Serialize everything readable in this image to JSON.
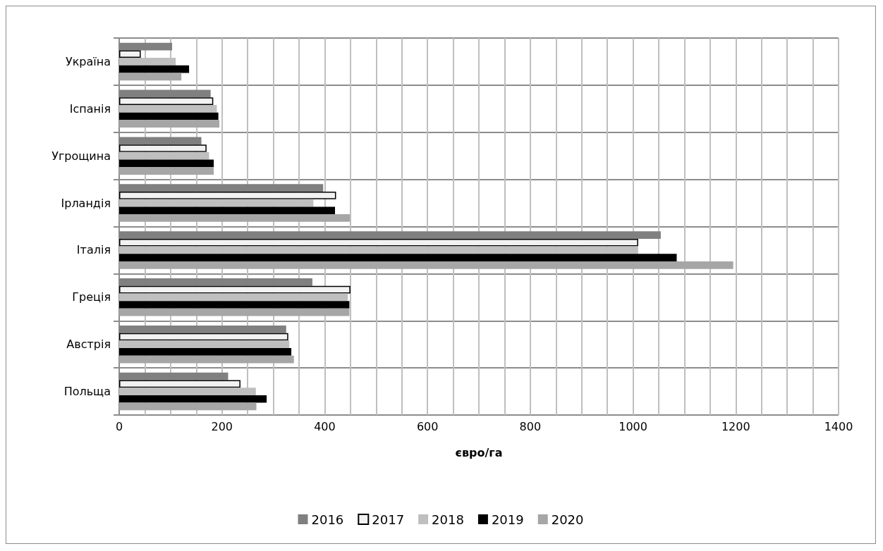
{
  "chart_data": {
    "type": "bar",
    "orientation": "horizontal",
    "xlabel": "євро/га",
    "categories": [
      "Україна",
      "Іспанія",
      "Угрощина",
      "Ірландія",
      "Італія",
      "Греція",
      "Австрія",
      "Польща"
    ],
    "series": [
      {
        "name": "2016",
        "color": "#808080",
        "values": [
          103,
          178,
          160,
          397,
          1054,
          376,
          325,
          212
        ]
      },
      {
        "name": "2017",
        "color": "#f2f2f2",
        "values": [
          42,
          183,
          170,
          422,
          1010,
          450,
          329,
          236
        ]
      },
      {
        "name": "2018",
        "color": "#bfbfbf",
        "values": [
          110,
          190,
          175,
          378,
          1010,
          445,
          331,
          266
        ]
      },
      {
        "name": "2019",
        "color": "#000000",
        "values": [
          136,
          193,
          184,
          420,
          1085,
          448,
          335,
          287
        ]
      },
      {
        "name": "2020",
        "color": "#a6a6a6",
        "values": [
          121,
          195,
          184,
          449,
          1195,
          448,
          340,
          267
        ]
      }
    ],
    "xlim": [
      0,
      1400
    ],
    "xticks": [
      0,
      200,
      400,
      600,
      800,
      1000,
      1200,
      1400
    ],
    "grid": true,
    "legend": "bottom"
  }
}
